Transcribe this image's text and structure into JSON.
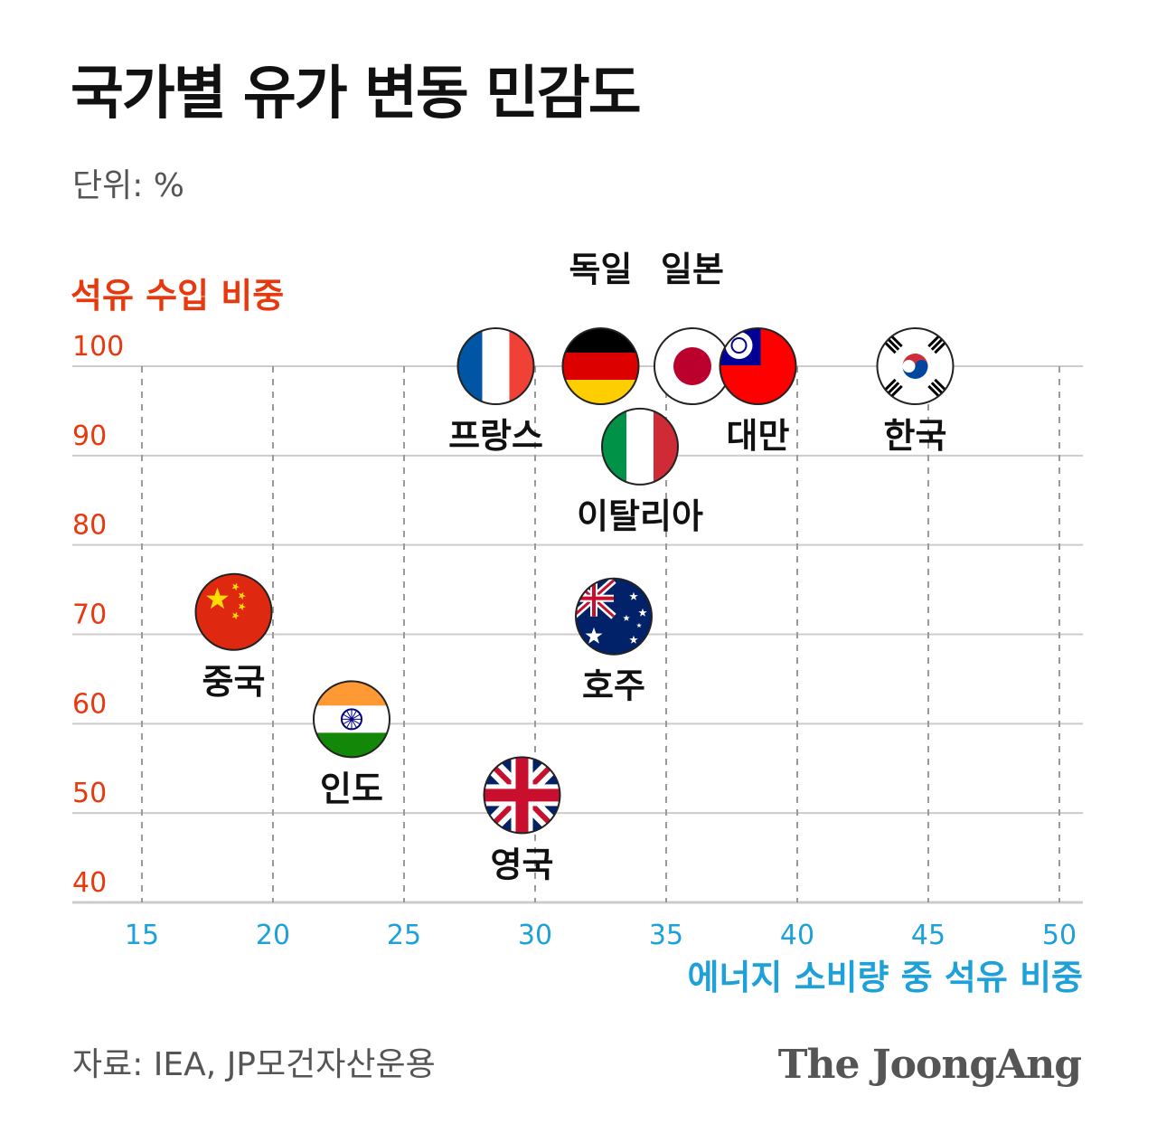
{
  "title": "국가별 유가 변동 민감도",
  "unit": "단위: %",
  "source": "자료: IEA, JP모건자산운용",
  "logo": "The JoongAng",
  "colors": {
    "y_axis": "#e8380d",
    "x_axis": "#1ea0d8",
    "grid": "#cccccc",
    "text": "#111111",
    "muted": "#555555"
  },
  "chart_data": {
    "type": "scatter",
    "xlabel": "에너지 소비량 중 석유 비중",
    "ylabel": "석유 수입 비중",
    "xlim": [
      15,
      50
    ],
    "ylim": [
      40,
      100
    ],
    "x_ticks": [
      "15",
      "20",
      "25",
      "30",
      "35",
      "40",
      "45",
      "50"
    ],
    "y_ticks": [
      "40",
      "50",
      "60",
      "70",
      "80",
      "90",
      "100"
    ],
    "grid": true,
    "points": [
      {
        "label": "중국",
        "x": 18.5,
        "y": 72.5,
        "icon": "china-flag-icon",
        "label_pos": "below"
      },
      {
        "label": "인도",
        "x": 23,
        "y": 60.5,
        "icon": "india-flag-icon",
        "label_pos": "below"
      },
      {
        "label": "영국",
        "x": 29.5,
        "y": 52,
        "icon": "uk-flag-icon",
        "label_pos": "below"
      },
      {
        "label": "호주",
        "x": 33,
        "y": 72,
        "icon": "australia-flag-icon",
        "label_pos": "below"
      },
      {
        "label": "프랑스",
        "x": 28.5,
        "y": 100,
        "icon": "france-flag-icon",
        "label_pos": "below"
      },
      {
        "label": "독일",
        "x": 32.5,
        "y": 100,
        "icon": "germany-flag-icon",
        "label_pos": "above"
      },
      {
        "label": "일본",
        "x": 36,
        "y": 100,
        "icon": "japan-flag-icon",
        "label_pos": "above"
      },
      {
        "label": "대만",
        "x": 38.5,
        "y": 100,
        "icon": "taiwan-flag-icon",
        "label_pos": "below"
      },
      {
        "label": "한국",
        "x": 44.5,
        "y": 100,
        "icon": "korea-flag-icon",
        "label_pos": "below"
      },
      {
        "label": "이탈리아",
        "x": 34,
        "y": 91,
        "icon": "italy-flag-icon",
        "label_pos": "below"
      }
    ]
  }
}
